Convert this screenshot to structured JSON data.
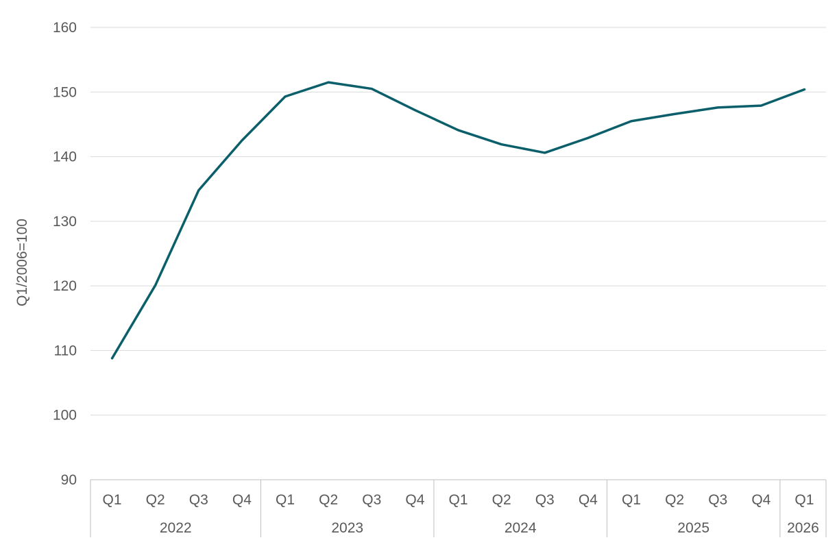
{
  "chart_data": {
    "type": "line",
    "title": "",
    "xlabel": "",
    "ylabel": "Q1/2006=100",
    "ylim": [
      90,
      160
    ],
    "yticks": [
      90,
      100,
      110,
      120,
      130,
      140,
      150,
      160
    ],
    "grid": true,
    "legend": "none",
    "line_color": "#0B5F6A",
    "grid_color": "#D9D9D9",
    "axis_color": "#BFBFBF",
    "categories": [
      {
        "quarter": "Q1",
        "year": "2022"
      },
      {
        "quarter": "Q2",
        "year": "2022"
      },
      {
        "quarter": "Q3",
        "year": "2022"
      },
      {
        "quarter": "Q4",
        "year": "2022"
      },
      {
        "quarter": "Q1",
        "year": "2023"
      },
      {
        "quarter": "Q2",
        "year": "2023"
      },
      {
        "quarter": "Q3",
        "year": "2023"
      },
      {
        "quarter": "Q4",
        "year": "2023"
      },
      {
        "quarter": "Q1",
        "year": "2024"
      },
      {
        "quarter": "Q2",
        "year": "2024"
      },
      {
        "quarter": "Q3",
        "year": "2024"
      },
      {
        "quarter": "Q4",
        "year": "2024"
      },
      {
        "quarter": "Q1",
        "year": "2025"
      },
      {
        "quarter": "Q2",
        "year": "2025"
      },
      {
        "quarter": "Q3",
        "year": "2025"
      },
      {
        "quarter": "Q4",
        "year": "2025"
      },
      {
        "quarter": "Q1",
        "year": "2026"
      }
    ],
    "years": [
      "2022",
      "2023",
      "2024",
      "2025",
      "2026"
    ],
    "series": [
      {
        "values": [
          108.8,
          120.1,
          134.8,
          142.5,
          149.3,
          151.5,
          150.5,
          147.2,
          144.1,
          141.9,
          140.6,
          142.9,
          145.5,
          146.6,
          147.6,
          147.9,
          150.4
        ]
      }
    ]
  }
}
